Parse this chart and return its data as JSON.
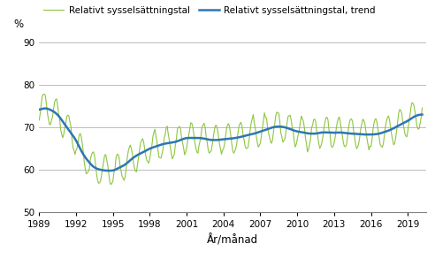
{
  "title": "",
  "ylabel": "%",
  "xlabel": "År/månad",
  "legend1": "Relativt sysselsättningstal",
  "legend2": "Relativt sysselsättningstal, trend",
  "color_raw": "#8dc63f",
  "color_trend": "#2e75b6",
  "ylim": [
    50,
    92
  ],
  "yticks": [
    50,
    60,
    70,
    80,
    90
  ],
  "xticks": [
    1989,
    1992,
    1995,
    1998,
    2001,
    2004,
    2007,
    2010,
    2013,
    2016,
    2019
  ],
  "start_year": 1989,
  "start_month": 1,
  "end_year": 2020,
  "end_month": 3,
  "background": "#ffffff",
  "grid_color": "#b0b0b0"
}
